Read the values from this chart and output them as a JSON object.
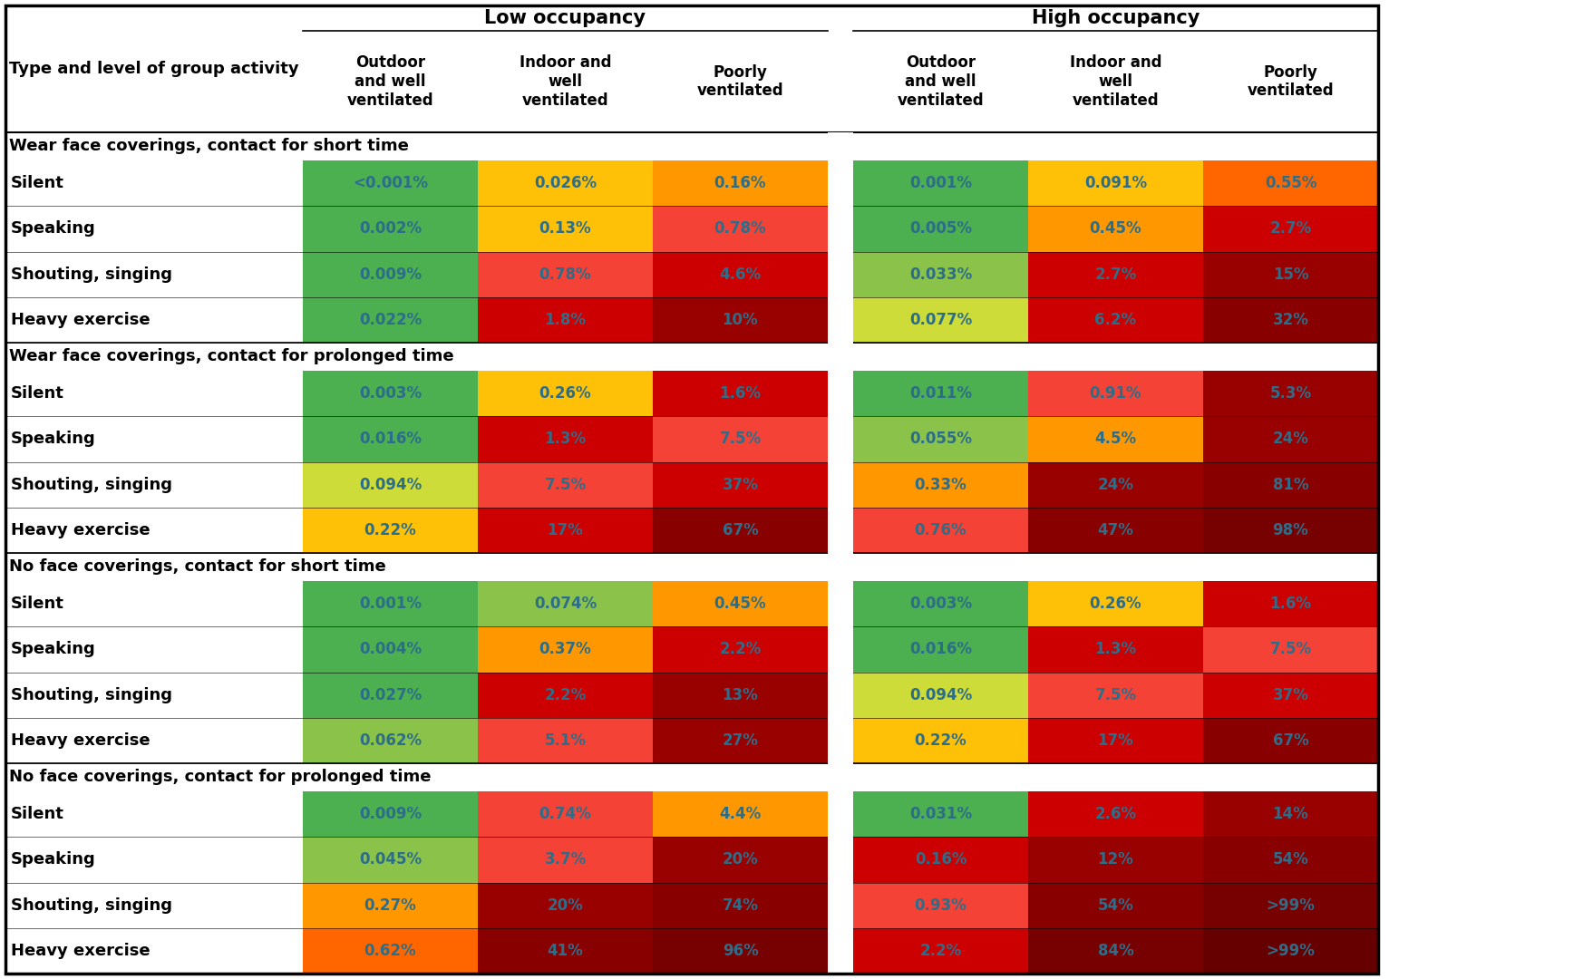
{
  "section_headers": [
    "Wear face coverings, contact for short time",
    "Wear face coverings, contact for prolonged time",
    "No face coverings, contact for short time",
    "No face coverings, contact for prolonged time"
  ],
  "row_labels": [
    "Silent",
    "Speaking",
    "Shouting, singing",
    "Heavy exercise"
  ],
  "data": [
    [
      [
        "<0.001%",
        "0.026%",
        "0.16%",
        "0.001%",
        "0.091%",
        "0.55%"
      ],
      [
        "0.002%",
        "0.13%",
        "0.78%",
        "0.005%",
        "0.45%",
        "2.7%"
      ],
      [
        "0.009%",
        "0.78%",
        "4.6%",
        "0.033%",
        "2.7%",
        "15%"
      ],
      [
        "0.022%",
        "1.8%",
        "10%",
        "0.077%",
        "6.2%",
        "32%"
      ]
    ],
    [
      [
        "0.003%",
        "0.26%",
        "1.6%",
        "0.011%",
        "0.91%",
        "5.3%"
      ],
      [
        "0.016%",
        "1.3%",
        "7.5%",
        "0.055%",
        "4.5%",
        "24%"
      ],
      [
        "0.094%",
        "7.5%",
        "37%",
        "0.33%",
        "24%",
        "81%"
      ],
      [
        "0.22%",
        "17%",
        "67%",
        "0.76%",
        "47%",
        "98%"
      ]
    ],
    [
      [
        "0.001%",
        "0.074%",
        "0.45%",
        "0.003%",
        "0.26%",
        "1.6%"
      ],
      [
        "0.004%",
        "0.37%",
        "2.2%",
        "0.016%",
        "1.3%",
        "7.5%"
      ],
      [
        "0.027%",
        "2.2%",
        "13%",
        "0.094%",
        "7.5%",
        "37%"
      ],
      [
        "0.062%",
        "5.1%",
        "27%",
        "0.22%",
        "17%",
        "67%"
      ]
    ],
    [
      [
        "0.009%",
        "0.74%",
        "4.4%",
        "0.031%",
        "2.6%",
        "14%"
      ],
      [
        "0.045%",
        "3.7%",
        "20%",
        "0.16%",
        "12%",
        "54%"
      ],
      [
        "0.27%",
        "20%",
        "74%",
        "0.93%",
        "54%",
        ">99%"
      ],
      [
        "0.62%",
        "41%",
        "96%",
        "2.2%",
        "84%",
        ">99%"
      ]
    ]
  ],
  "colors": [
    [
      [
        "#4caf50",
        "#ffc107",
        "#ff9800",
        "#4caf50",
        "#ffc107",
        "#ff6600"
      ],
      [
        "#4caf50",
        "#ffc107",
        "#f44336",
        "#4caf50",
        "#ff9800",
        "#cc0000"
      ],
      [
        "#4caf50",
        "#f44336",
        "#cc0000",
        "#8bc34a",
        "#cc0000",
        "#990000"
      ],
      [
        "#4caf50",
        "#cc0000",
        "#990000",
        "#cddc39",
        "#cc0000",
        "#880000"
      ]
    ],
    [
      [
        "#4caf50",
        "#ffc107",
        "#cc0000",
        "#4caf50",
        "#f44336",
        "#990000"
      ],
      [
        "#4caf50",
        "#cc0000",
        "#f44336",
        "#8bc34a",
        "#ff9800",
        "#990000"
      ],
      [
        "#cddc39",
        "#f44336",
        "#cc0000",
        "#ff9800",
        "#990000",
        "#880000"
      ],
      [
        "#ffc107",
        "#cc0000",
        "#880000",
        "#f44336",
        "#880000",
        "#770000"
      ]
    ],
    [
      [
        "#4caf50",
        "#8bc34a",
        "#ff9800",
        "#4caf50",
        "#ffc107",
        "#cc0000"
      ],
      [
        "#4caf50",
        "#ff9800",
        "#cc0000",
        "#4caf50",
        "#cc0000",
        "#f44336"
      ],
      [
        "#4caf50",
        "#cc0000",
        "#990000",
        "#cddc39",
        "#f44336",
        "#cc0000"
      ],
      [
        "#8bc34a",
        "#f44336",
        "#990000",
        "#ffc107",
        "#cc0000",
        "#880000"
      ]
    ],
    [
      [
        "#4caf50",
        "#f44336",
        "#ff9800",
        "#4caf50",
        "#cc0000",
        "#990000"
      ],
      [
        "#8bc34a",
        "#f44336",
        "#990000",
        "#cc0000",
        "#990000",
        "#880000"
      ],
      [
        "#ff9800",
        "#990000",
        "#880000",
        "#f44336",
        "#880000",
        "#770000"
      ],
      [
        "#ff6600",
        "#880000",
        "#770000",
        "#cc0000",
        "#770000",
        "#660000"
      ]
    ]
  ],
  "fig_width": 17.58,
  "fig_height": 10.8,
  "dpi": 100
}
